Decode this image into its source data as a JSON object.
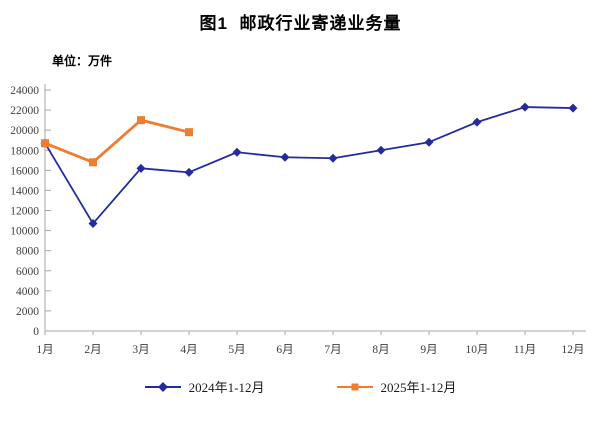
{
  "header": {
    "title": "图1  邮政行业寄递业务量"
  },
  "chart": {
    "unit_label": "单位：万件"
  },
  "chart_data": {
    "type": "line",
    "title": "图1 邮政行业寄递业务量",
    "unit": "万件",
    "xlabel": "",
    "ylabel": "单位：万件",
    "categories": [
      "1月",
      "2月",
      "3月",
      "4月",
      "5月",
      "6月",
      "7月",
      "8月",
      "9月",
      "10月",
      "11月",
      "12月"
    ],
    "series": [
      {
        "name": "2024年1-12月",
        "color": "#232c9e",
        "marker": "diamond",
        "values": [
          18700,
          10700,
          16200,
          15800,
          17800,
          17300,
          17200,
          18000,
          18800,
          20800,
          22300,
          22200
        ]
      },
      {
        "name": "2025年1-12月",
        "color": "#ed7d31",
        "marker": "square",
        "values": [
          18700,
          16800,
          21000,
          19800
        ]
      }
    ],
    "ylim": [
      0,
      24000
    ],
    "ytick_step": 2000,
    "grid": false,
    "legend_position": "bottom",
    "axis_color": "#a6a6a6",
    "label_color": "#3f3f3f"
  }
}
